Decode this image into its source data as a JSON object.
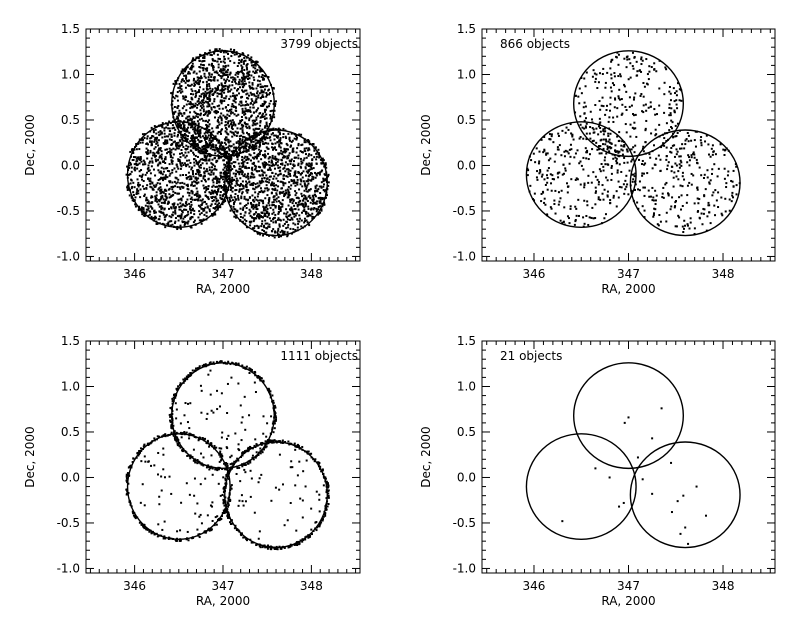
{
  "chart_data": [
    {
      "type": "scatter",
      "annotation": "3799 objects",
      "xlabel": "RA, 2000",
      "ylabel": "Dec, 2000",
      "xlim": [
        345.45,
        348.55
      ],
      "ylim": [
        -1.05,
        1.5
      ],
      "xticks": [
        "346",
        "347",
        "348"
      ],
      "xtick_values": [
        346,
        347,
        348
      ],
      "yticks": [
        "-1.0",
        "-0.5",
        "0.0",
        "0.5",
        "1.0",
        "1.5"
      ],
      "ytick_values": [
        -1.0,
        -0.5,
        0.0,
        0.5,
        1.0,
        1.5
      ],
      "fields": [
        {
          "ra": 347.0,
          "dec": 0.68,
          "radius": 0.58
        },
        {
          "ra": 346.5,
          "dec": -0.1,
          "radius": 0.58
        },
        {
          "ra": 347.6,
          "dec": -0.19,
          "radius": 0.58
        }
      ],
      "n_points": 3799,
      "edge_fraction": 0.1,
      "grid": false,
      "legend": "none"
    },
    {
      "type": "scatter",
      "annotation": "866 objects",
      "xlabel": "RA, 2000",
      "ylabel": "Dec, 2000",
      "xlim": [
        345.45,
        348.55
      ],
      "ylim": [
        -1.05,
        1.5
      ],
      "xticks": [
        "346",
        "347",
        "348"
      ],
      "xtick_values": [
        346,
        347,
        348
      ],
      "yticks": [
        "-1.0",
        "-0.5",
        "0.0",
        "0.5",
        "1.0",
        "1.5"
      ],
      "ytick_values": [
        -1.0,
        -0.5,
        0.0,
        0.5,
        1.0,
        1.5
      ],
      "fields": [
        {
          "ra": 347.0,
          "dec": 0.68,
          "radius": 0.58
        },
        {
          "ra": 346.5,
          "dec": -0.1,
          "radius": 0.58
        },
        {
          "ra": 347.6,
          "dec": -0.19,
          "radius": 0.58
        }
      ],
      "n_points": 866,
      "edge_fraction": 0.0,
      "grid": false,
      "legend": "none"
    },
    {
      "type": "scatter",
      "annotation": "1111 objects",
      "xlabel": "RA, 2000",
      "ylabel": "Dec, 2000",
      "xlim": [
        345.45,
        348.55
      ],
      "ylim": [
        -1.05,
        1.5
      ],
      "xticks": [
        "346",
        "347",
        "348"
      ],
      "xtick_values": [
        346,
        347,
        348
      ],
      "yticks": [
        "-1.0",
        "-0.5",
        "0.0",
        "0.5",
        "1.0",
        "1.5"
      ],
      "ytick_values": [
        -1.0,
        -0.5,
        0.0,
        0.5,
        1.0,
        1.5
      ],
      "fields": [
        {
          "ra": 347.0,
          "dec": 0.68,
          "radius": 0.58
        },
        {
          "ra": 346.5,
          "dec": -0.1,
          "radius": 0.58
        },
        {
          "ra": 347.6,
          "dec": -0.19,
          "radius": 0.58
        }
      ],
      "n_points": 1111,
      "edge_fraction": 0.82,
      "grid": false,
      "legend": "none"
    },
    {
      "type": "scatter",
      "annotation": "21 objects",
      "xlabel": "RA, 2000",
      "ylabel": "Dec, 2000",
      "xlim": [
        345.45,
        348.55
      ],
      "ylim": [
        -1.05,
        1.5
      ],
      "xticks": [
        "346",
        "347",
        "348"
      ],
      "xtick_values": [
        346,
        347,
        348
      ],
      "yticks": [
        "-1.0",
        "-0.5",
        "0.0",
        "0.5",
        "1.0",
        "1.5"
      ],
      "ytick_values": [
        -1.0,
        -0.5,
        0.0,
        0.5,
        1.0,
        1.5
      ],
      "fields": [
        {
          "ra": 347.0,
          "dec": 0.68,
          "radius": 0.58
        },
        {
          "ra": 346.5,
          "dec": -0.1,
          "radius": 0.58
        },
        {
          "ra": 347.6,
          "dec": -0.19,
          "radius": 0.58
        }
      ],
      "n_points": 21,
      "points": [
        {
          "ra": 347.0,
          "dec": 0.66
        },
        {
          "ra": 346.96,
          "dec": 0.6
        },
        {
          "ra": 347.35,
          "dec": 0.76
        },
        {
          "ra": 347.25,
          "dec": 0.43
        },
        {
          "ra": 347.1,
          "dec": 0.22
        },
        {
          "ra": 347.45,
          "dec": 0.16
        },
        {
          "ra": 346.65,
          "dec": 0.1
        },
        {
          "ra": 346.95,
          "dec": -0.28
        },
        {
          "ra": 346.9,
          "dec": -0.32
        },
        {
          "ra": 346.3,
          "dec": -0.48
        },
        {
          "ra": 347.25,
          "dec": -0.18
        },
        {
          "ra": 347.52,
          "dec": -0.26
        },
        {
          "ra": 347.58,
          "dec": -0.2
        },
        {
          "ra": 347.6,
          "dec": -0.55
        },
        {
          "ra": 347.55,
          "dec": -0.62
        },
        {
          "ra": 347.63,
          "dec": -0.73
        },
        {
          "ra": 347.82,
          "dec": -0.42
        },
        {
          "ra": 347.46,
          "dec": -0.38
        },
        {
          "ra": 347.72,
          "dec": -0.1
        },
        {
          "ra": 346.8,
          "dec": 0.0
        },
        {
          "ra": 347.15,
          "dec": -0.02
        }
      ],
      "grid": false,
      "legend": "none"
    }
  ]
}
